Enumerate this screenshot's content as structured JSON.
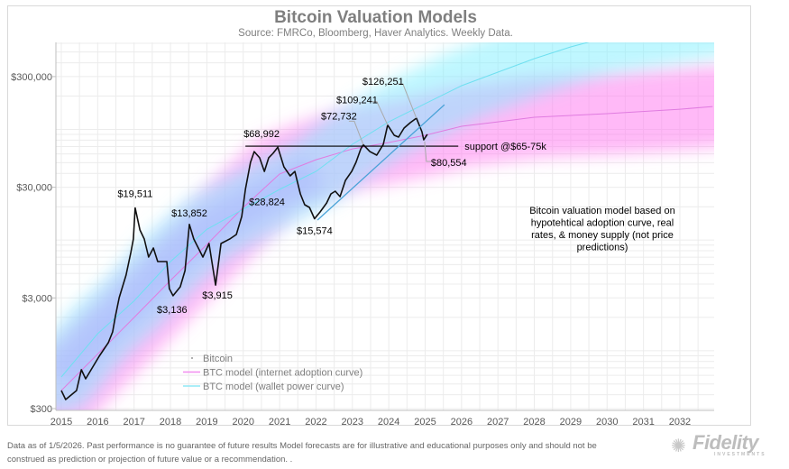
{
  "chart_data": {
    "type": "line",
    "title": "Bitcoin Valuation Models",
    "subtitle": "Source: FMRCo, Bloomberg, Haver Analytics. Weekly Data.",
    "xlim": [
      2015,
      2032.9
    ],
    "ylim": [
      300,
      612000
    ],
    "y_scale": "log",
    "grid": true,
    "legend_placement": "bottom-left",
    "x_ticks": [
      "2015",
      "2016",
      "2017",
      "2018",
      "2019",
      "2020",
      "2021",
      "2022",
      "2023",
      "2024",
      "2025",
      "2026",
      "2027",
      "2028",
      "2029",
      "2030",
      "2031",
      "2032"
    ],
    "y_ticks": [
      {
        "value": 300,
        "label": "$300"
      },
      {
        "value": 3000,
        "label": "$3,000"
      },
      {
        "value": 30000,
        "label": "$30,000"
      },
      {
        "value": 300000,
        "label": "$300,000"
      }
    ],
    "series": [
      {
        "name": "Bitcoin",
        "color": "#000000",
        "points": [
          [
            2015.0,
            437
          ],
          [
            2015.12,
            362
          ],
          [
            2015.42,
            437
          ],
          [
            2015.55,
            673
          ],
          [
            2015.67,
            557
          ],
          [
            2016.04,
            891
          ],
          [
            2016.29,
            1181
          ],
          [
            2016.41,
            1479
          ],
          [
            2016.49,
            2073
          ],
          [
            2016.59,
            3016
          ],
          [
            2016.78,
            4822
          ],
          [
            2016.91,
            7710
          ],
          [
            2016.98,
            10220
          ],
          [
            2017.03,
            19511
          ],
          [
            2017.16,
            12330
          ],
          [
            2017.28,
            10220
          ],
          [
            2017.4,
            7020
          ],
          [
            2017.53,
            8470
          ],
          [
            2017.65,
            6390
          ],
          [
            2017.9,
            6390
          ],
          [
            2017.97,
            3640
          ],
          [
            2018.07,
            3136
          ],
          [
            2018.27,
            3780
          ],
          [
            2018.4,
            5300
          ],
          [
            2018.52,
            13852
          ],
          [
            2018.64,
            10220
          ],
          [
            2018.89,
            7020
          ],
          [
            2019.06,
            9300
          ],
          [
            2019.24,
            3915
          ],
          [
            2019.39,
            9300
          ],
          [
            2019.63,
            10220
          ],
          [
            2019.81,
            11220
          ],
          [
            2019.96,
            16340
          ],
          [
            2020.06,
            28824
          ],
          [
            2020.2,
            50400
          ],
          [
            2020.3,
            63000
          ],
          [
            2020.45,
            55400
          ],
          [
            2020.58,
            41700
          ],
          [
            2020.7,
            55400
          ],
          [
            2020.82,
            60700
          ],
          [
            2020.95,
            68992
          ],
          [
            2021.12,
            45800
          ],
          [
            2021.29,
            38000
          ],
          [
            2021.42,
            41700
          ],
          [
            2021.57,
            26100
          ],
          [
            2021.69,
            20850
          ],
          [
            2021.82,
            19700
          ],
          [
            2021.96,
            15574
          ],
          [
            2022.11,
            17900
          ],
          [
            2022.29,
            21600
          ],
          [
            2022.41,
            26100
          ],
          [
            2022.53,
            27600
          ],
          [
            2022.66,
            24700
          ],
          [
            2022.81,
            34600
          ],
          [
            2022.98,
            41700
          ],
          [
            2023.1,
            50400
          ],
          [
            2023.23,
            66600
          ],
          [
            2023.3,
            72732
          ],
          [
            2023.48,
            63000
          ],
          [
            2023.67,
            58500
          ],
          [
            2023.85,
            73300
          ],
          [
            2023.97,
            109241
          ],
          [
            2024.15,
            88400
          ],
          [
            2024.27,
            85200
          ],
          [
            2024.42,
            102800
          ],
          [
            2024.59,
            115000
          ],
          [
            2024.76,
            126251
          ],
          [
            2024.91,
            95400
          ],
          [
            2024.96,
            80554
          ],
          [
            2025.06,
            90200
          ]
        ]
      },
      {
        "name": "BTC model (internet adoption curve)",
        "color": "#f28cf0",
        "band_color": "#ff7ff0",
        "points": [
          [
            2015,
            437
          ],
          [
            2017,
            1996
          ],
          [
            2018,
            4320
          ],
          [
            2019,
            9120
          ],
          [
            2020,
            19700
          ],
          [
            2021,
            39500
          ],
          [
            2022,
            53200
          ],
          [
            2023,
            66600
          ],
          [
            2024,
            76100
          ],
          [
            2025,
            88400
          ],
          [
            2026,
            106700
          ],
          [
            2027,
            117000
          ],
          [
            2028,
            128700
          ],
          [
            2030,
            138700
          ],
          [
            2032,
            152000
          ],
          [
            2032.9,
            161000
          ]
        ]
      },
      {
        "name": "BTC model (wallet power curve)",
        "color": "#8fe8f5",
        "band_color": "#7ff0ff",
        "points": [
          [
            2015,
            579
          ],
          [
            2016,
            1424
          ],
          [
            2017,
            2820
          ],
          [
            2018,
            6390
          ],
          [
            2019,
            12500
          ],
          [
            2020,
            19000
          ],
          [
            2021,
            28700
          ],
          [
            2022,
            41700
          ],
          [
            2023,
            73300
          ],
          [
            2024,
            117000
          ],
          [
            2025,
            171000
          ],
          [
            2026,
            248000
          ],
          [
            2027,
            329000
          ],
          [
            2028,
            436000
          ],
          [
            2029,
            556000
          ],
          [
            2030,
            680000
          ],
          [
            2032.9,
            950000
          ]
        ]
      }
    ],
    "annotations": [
      {
        "text": "$19,511",
        "x": 2017.03,
        "y": 19511
      },
      {
        "text": "$13,852",
        "x": 2018.52,
        "y": 13852
      },
      {
        "text": "$3,136",
        "x": 2018.07,
        "y": 3136
      },
      {
        "text": "$3,915",
        "x": 2019.24,
        "y": 3915
      },
      {
        "text": "$28,824",
        "x": 2020.06,
        "y": 28824
      },
      {
        "text": "$68,992",
        "x": 2020.95,
        "y": 68992
      },
      {
        "text": "$15,574",
        "x": 2021.96,
        "y": 15574
      },
      {
        "text": "$72,732",
        "x": 2023.3,
        "y": 72732
      },
      {
        "text": "$109,241",
        "x": 2023.97,
        "y": 109241
      },
      {
        "text": "$126,251",
        "x": 2024.76,
        "y": 126251
      },
      {
        "text": "$80,554",
        "x": 2024.96,
        "y": 80554
      }
    ],
    "support_line": {
      "label": "support @$65-75k",
      "value": 70500,
      "x_start": 2020.06,
      "x_end": 2025.91,
      "color": "#000000"
    },
    "trend_line": {
      "start": [
        2022.04,
        15150
      ],
      "end": [
        2025.53,
        167000
      ],
      "color": "#4aa3d8"
    },
    "note": "Bitcoin valuation model based on hypotehtical adoption curve, real rates, & money supply (not price predictions)"
  },
  "footer": {
    "line1": "Data as of 1/5/2026. Past performance is no guarantee of future results Model forecasts are for illustrative and educational purposes only and should not be",
    "line2": "construed as prediction or projection of future value or a recommendation. ."
  },
  "logo": {
    "word": "Fidelity",
    "sub": "INVESTMENTS"
  }
}
